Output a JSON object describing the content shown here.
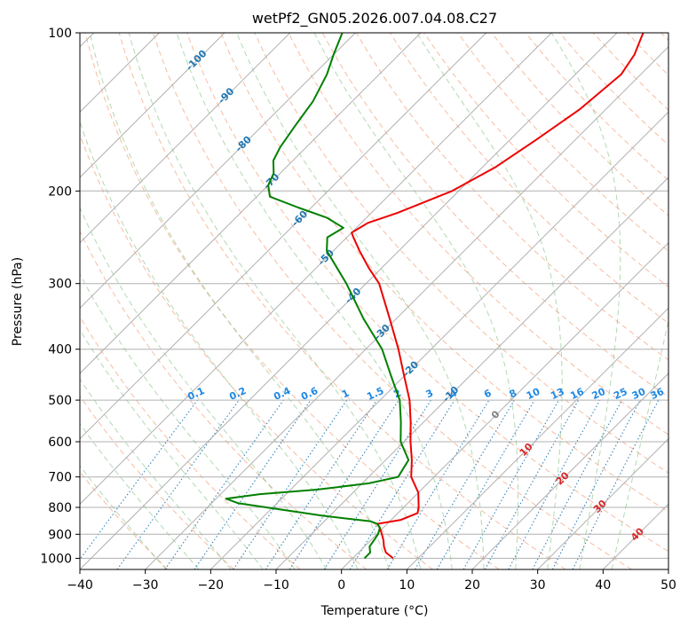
{
  "chart_data": {
    "type": "line",
    "title": "wetPf2_GN05.2026.007.04.08.C27",
    "xlabel": "Temperature (°C)",
    "ylabel": "Pressure (hPa)",
    "xlim": [
      -40,
      50
    ],
    "ylim": [
      1050,
      100
    ],
    "y_scale": "log",
    "skew": true,
    "grid": true,
    "x_ticks": [
      -40,
      -30,
      -20,
      -10,
      0,
      10,
      20,
      30,
      40,
      50
    ],
    "y_ticks": [
      100,
      200,
      300,
      400,
      500,
      600,
      700,
      800,
      900,
      1000
    ],
    "colors": {
      "temperature": "#ee0000",
      "dewpoint": "#008000",
      "dry_adiabat": "#f4a582",
      "moist_adiabat": "#7fbf7f",
      "mixing_ratio": "#1f77b4",
      "mixing_label": "#1e88e5",
      "isotherm_neg": "#1f77b4",
      "isotherm_pos": "#d62728",
      "isotherm_zero": "#808080",
      "grid": "#b0b0b0"
    },
    "series": [
      {
        "key": "temperature",
        "points": [
          {
            "p": 1000,
            "t": 6.2
          },
          {
            "p": 975,
            "t": 4.2
          },
          {
            "p": 950,
            "t": 3.0
          },
          {
            "p": 925,
            "t": 2.0
          },
          {
            "p": 900,
            "t": 0.8
          },
          {
            "p": 875,
            "t": -0.5
          },
          {
            "p": 860,
            "t": -1.5
          },
          {
            "p": 845,
            "t": 1.5
          },
          {
            "p": 820,
            "t": 3.0
          },
          {
            "p": 800,
            "t": 2.3
          },
          {
            "p": 750,
            "t": 0.0
          },
          {
            "p": 700,
            "t": -3.5
          },
          {
            "p": 650,
            "t": -6.0
          },
          {
            "p": 600,
            "t": -9.0
          },
          {
            "p": 550,
            "t": -12.0
          },
          {
            "p": 500,
            "t": -15.5
          },
          {
            "p": 450,
            "t": -20.0
          },
          {
            "p": 400,
            "t": -25.0
          },
          {
            "p": 350,
            "t": -31.0
          },
          {
            "p": 300,
            "t": -38.0
          },
          {
            "p": 280,
            "t": -42.0
          },
          {
            "p": 260,
            "t": -46.0
          },
          {
            "p": 245,
            "t": -49.0
          },
          {
            "p": 240,
            "t": -50.0
          },
          {
            "p": 230,
            "t": -49.0
          },
          {
            "p": 220,
            "t": -46.0
          },
          {
            "p": 200,
            "t": -41.0
          },
          {
            "p": 180,
            "t": -38.0
          },
          {
            "p": 160,
            "t": -36.0
          },
          {
            "p": 140,
            "t": -34.0
          },
          {
            "p": 120,
            "t": -33.0
          },
          {
            "p": 110,
            "t": -34.0
          },
          {
            "p": 100,
            "t": -36.0
          }
        ]
      },
      {
        "key": "dewpoint",
        "points": [
          {
            "p": 1000,
            "t": 1.8
          },
          {
            "p": 975,
            "t": 1.8
          },
          {
            "p": 950,
            "t": 0.8
          },
          {
            "p": 925,
            "t": 0.5
          },
          {
            "p": 900,
            "t": 0.2
          },
          {
            "p": 875,
            "t": -0.5
          },
          {
            "p": 860,
            "t": -1.5
          },
          {
            "p": 850,
            "t": -3.0
          },
          {
            "p": 840,
            "t": -7.0
          },
          {
            "p": 830,
            "t": -11.0
          },
          {
            "p": 800,
            "t": -21.0
          },
          {
            "p": 785,
            "t": -26.0
          },
          {
            "p": 770,
            "t": -28.5
          },
          {
            "p": 755,
            "t": -24.0
          },
          {
            "p": 740,
            "t": -16.0
          },
          {
            "p": 720,
            "t": -9.0
          },
          {
            "p": 700,
            "t": -5.5
          },
          {
            "p": 650,
            "t": -6.5
          },
          {
            "p": 600,
            "t": -10.5
          },
          {
            "p": 550,
            "t": -13.5
          },
          {
            "p": 500,
            "t": -17.0
          },
          {
            "p": 450,
            "t": -22.0
          },
          {
            "p": 400,
            "t": -27.5
          },
          {
            "p": 350,
            "t": -35.0
          },
          {
            "p": 300,
            "t": -43.0
          },
          {
            "p": 260,
            "t": -51.0
          },
          {
            "p": 245,
            "t": -53.0
          },
          {
            "p": 235,
            "t": -52.0
          },
          {
            "p": 225,
            "t": -56.0
          },
          {
            "p": 215,
            "t": -62.0
          },
          {
            "p": 205,
            "t": -68.0
          },
          {
            "p": 195,
            "t": -70.0
          },
          {
            "p": 185,
            "t": -71.0
          },
          {
            "p": 175,
            "t": -73.0
          },
          {
            "p": 165,
            "t": -74.0
          },
          {
            "p": 150,
            "t": -75.0
          },
          {
            "p": 135,
            "t": -76.0
          },
          {
            "p": 120,
            "t": -78.0
          },
          {
            "p": 110,
            "t": -80.0
          },
          {
            "p": 100,
            "t": -82.0
          }
        ]
      }
    ],
    "isotherm_labels": [
      {
        "text": "-100",
        "t": -100,
        "p": 113,
        "color": "neg"
      },
      {
        "text": "-90",
        "t": -90,
        "p": 132,
        "color": "neg"
      },
      {
        "text": "-80",
        "t": -80,
        "p": 163,
        "color": "neg"
      },
      {
        "text": "-70",
        "t": -70,
        "p": 192,
        "color": "neg"
      },
      {
        "text": "-60",
        "t": -60,
        "p": 226,
        "color": "neg"
      },
      {
        "text": "-50",
        "t": -50,
        "p": 268,
        "color": "neg"
      },
      {
        "text": "-40",
        "t": -40,
        "p": 317,
        "color": "neg"
      },
      {
        "text": "-30",
        "t": -30,
        "p": 372,
        "color": "neg"
      },
      {
        "text": "-20",
        "t": -20,
        "p": 437,
        "color": "neg"
      },
      {
        "text": "-10",
        "t": -10,
        "p": 488,
        "color": "neg"
      },
      {
        "text": "0",
        "t": 0,
        "p": 534,
        "color": "zero"
      },
      {
        "text": "10",
        "t": 10,
        "p": 622,
        "color": "pos"
      },
      {
        "text": "20",
        "t": 20,
        "p": 706,
        "color": "pos"
      },
      {
        "text": "30",
        "t": 30,
        "p": 798,
        "color": "pos"
      },
      {
        "text": "40",
        "t": 40,
        "p": 902,
        "color": "pos"
      }
    ],
    "mixing_ratios": [
      0.1,
      0.2,
      0.4,
      0.6,
      1,
      1.5,
      2,
      3,
      4,
      6,
      8,
      10,
      13,
      16,
      20,
      25,
      30,
      36
    ],
    "mixing_ratio_labels": [
      "0.1",
      "0.2",
      "0.4",
      "0.6",
      "1",
      "1.5",
      "2",
      "3",
      "4",
      "6",
      "8",
      "10",
      "13",
      "16",
      "20",
      "25",
      "30",
      "36"
    ]
  }
}
